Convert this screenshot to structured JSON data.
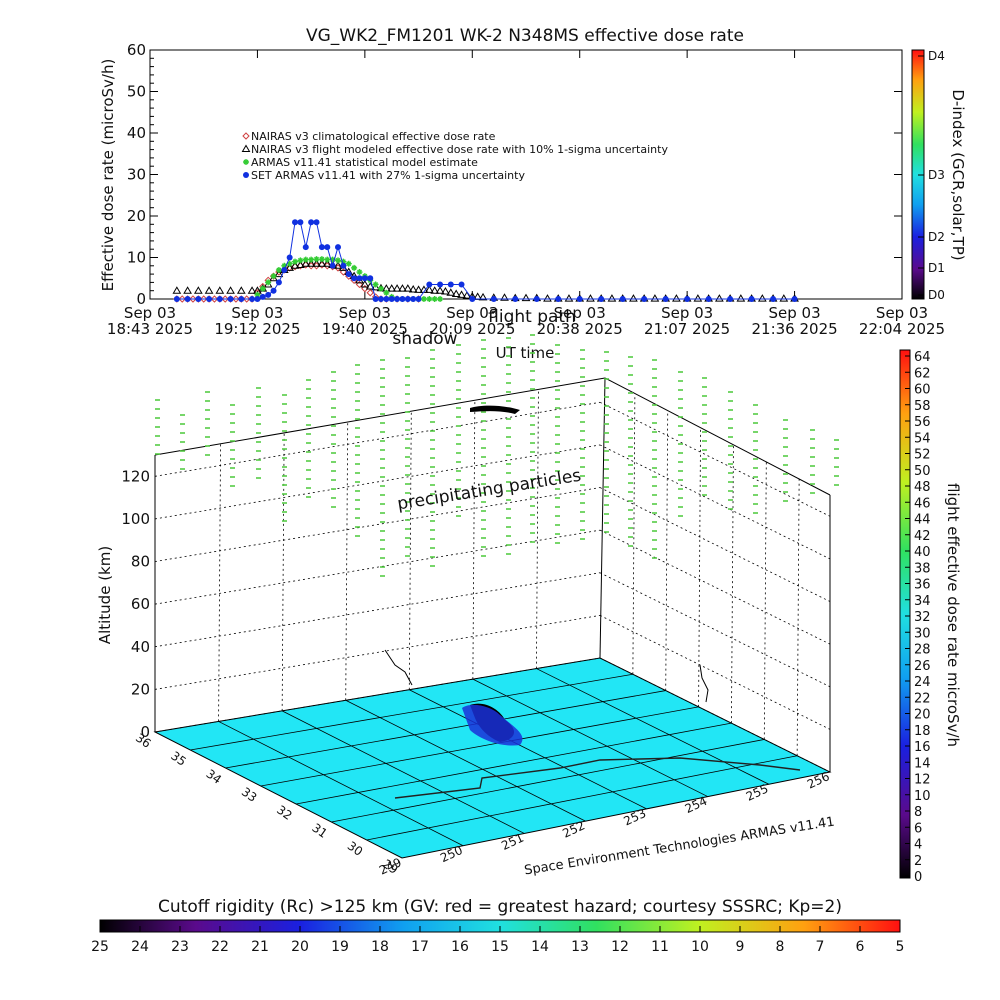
{
  "header": {
    "title": "VG_WK2_FM1201    WK-2 N348MS effective dose rate"
  },
  "chart_data": [
    {
      "type": "scatter",
      "title": "VG_WK2_FM1201    WK-2 N348MS effective dose rate",
      "ylabel": "Effective dose rate (microSv/h)",
      "xlabel": "UT time",
      "ylim": [
        0,
        60
      ],
      "y_ticks": [
        "0",
        "10",
        "20",
        "30",
        "40",
        "50",
        "60"
      ],
      "x_ticks": [
        {
          "line1": "Sep 03",
          "line2": "18:43 2025"
        },
        {
          "line1": "Sep 03",
          "line2": "19:12 2025"
        },
        {
          "line1": "Sep 03",
          "line2": "19:40 2025"
        },
        {
          "line1": "Sep 03",
          "line2": "20:09 2025"
        },
        {
          "line1": "Sep 03",
          "line2": "20:38 2025"
        },
        {
          "line1": "Sep 03",
          "line2": "21:07 2025"
        },
        {
          "line1": "Sep 03",
          "line2": "21:36 2025"
        },
        {
          "line1": "Sep 03",
          "line2": "22:04 2025"
        }
      ],
      "annotations": [
        "shadow",
        "flight path"
      ],
      "legend": [
        {
          "label": "NAIRAS v3 climatological effective dose rate",
          "color": "#d04040",
          "marker": "diamond"
        },
        {
          "label": "NAIRAS v3 flight modeled effective dose rate with 10% 1-sigma uncertainty",
          "color": "#000000",
          "marker": "triangle"
        },
        {
          "label": "ARMAS v11.41 statistical model estimate",
          "color": "#33cc33",
          "marker": "star"
        },
        {
          "label": "SET ARMAS v11.41 with 27% 1-sigma uncertainty",
          "color": "#1030e0",
          "marker": "circle"
        }
      ],
      "legend_position": "upper-left",
      "series": [
        {
          "name": "NAIRAS v3 climatological effective dose rate",
          "x": [
            0.25,
            0.3,
            0.35,
            0.4,
            0.45,
            0.5,
            0.55,
            0.6,
            0.65,
            0.7,
            0.75,
            0.8,
            0.85,
            0.9,
            0.95,
            1.0,
            1.05,
            1.1,
            1.15,
            1.2,
            1.25,
            1.3,
            1.35,
            1.4,
            1.45,
            1.5,
            1.55,
            1.6,
            1.65,
            1.7,
            1.75,
            1.8,
            1.85,
            1.9,
            1.95,
            2.0,
            2.05,
            2.1,
            2.15,
            2.2,
            2.3,
            2.4,
            2.5
          ],
          "y": [
            0,
            0,
            0,
            0,
            0,
            0,
            0,
            0,
            0,
            0,
            0,
            0,
            0,
            0,
            0,
            1.5,
            3,
            4.5,
            5.5,
            6.5,
            7,
            7.5,
            7.8,
            8,
            8.2,
            8,
            8,
            8.2,
            8,
            7.8,
            7.5,
            6.5,
            5.5,
            4.5,
            3.5,
            2.5,
            1.5,
            0.5,
            0,
            0,
            0,
            0,
            0
          ]
        },
        {
          "name": "NAIRAS v3 flight modeled effective dose rate with 10% 1-sigma uncertainty",
          "x": [
            0.25,
            0.35,
            0.45,
            0.55,
            0.65,
            0.75,
            0.85,
            0.95,
            1.0,
            1.05,
            1.1,
            1.15,
            1.2,
            1.25,
            1.3,
            1.35,
            1.4,
            1.45,
            1.5,
            1.55,
            1.6,
            1.65,
            1.7,
            1.75,
            1.8,
            1.85,
            1.9,
            1.95,
            2.0,
            2.05,
            2.1,
            2.15,
            2.2,
            2.25,
            2.3,
            2.35,
            2.4,
            2.45,
            2.5,
            2.55,
            2.6,
            2.65,
            2.7,
            2.75,
            2.8,
            2.85,
            2.9,
            2.95,
            3.0,
            3.05,
            3.1,
            3.2,
            3.3,
            3.4,
            3.5,
            3.6,
            3.7,
            3.8,
            3.9,
            4.0,
            4.1,
            4.2,
            4.3,
            4.4,
            4.5,
            4.6,
            4.7,
            4.8,
            4.9,
            5.0,
            5.1,
            5.2,
            5.3,
            5.4,
            5.5,
            5.6,
            5.7,
            5.8,
            5.9,
            6.0
          ],
          "y": [
            2,
            2,
            2,
            2,
            2,
            2,
            2,
            2,
            2,
            2.5,
            3.5,
            5,
            6,
            7,
            7.5,
            8,
            8.2,
            8.5,
            8.5,
            8.5,
            8.5,
            8.5,
            8.2,
            8,
            7.5,
            6.5,
            5.5,
            4.5,
            3.5,
            3,
            2.8,
            2.6,
            2.5,
            2.5,
            2.5,
            2.5,
            2.5,
            2.3,
            2.2,
            2.2,
            2.2,
            2,
            2,
            1.8,
            1.5,
            1.2,
            1,
            0.8,
            0.6,
            0.5,
            0.4,
            0.3,
            0.3,
            0.2,
            0.2,
            0.2,
            0.1,
            0.1,
            0.1,
            0.1,
            0.1,
            0.1,
            0.1,
            0.1,
            0.1,
            0.1,
            0.1,
            0.1,
            0.1,
            0.1,
            0.1,
            0.1,
            0.1,
            0.1,
            0.1,
            0.1,
            0.1,
            0.1,
            0.1,
            0.1
          ]
        },
        {
          "name": "ARMAS v11.41 statistical model estimate",
          "x": [
            1.0,
            1.05,
            1.1,
            1.15,
            1.2,
            1.25,
            1.3,
            1.35,
            1.4,
            1.45,
            1.5,
            1.55,
            1.6,
            1.65,
            1.7,
            1.75,
            1.8,
            1.85,
            1.9,
            1.95,
            2.0,
            2.05,
            2.1,
            2.15,
            2.2,
            2.25,
            2.3,
            2.35,
            2.4,
            2.45,
            2.5,
            2.55,
            2.6,
            2.65,
            2.7
          ],
          "y": [
            1,
            2.5,
            4,
            5.5,
            7,
            8,
            8.5,
            9,
            9.3,
            9.5,
            9.5,
            9.6,
            9.6,
            9.5,
            9.5,
            9.3,
            9,
            8.5,
            7.5,
            6.5,
            5.5,
            4.5,
            3.5,
            2.5,
            1.5,
            0.5,
            0,
            0,
            0,
            0,
            0,
            0,
            0,
            0,
            0
          ]
        },
        {
          "name": "SET ARMAS v11.41 with 27% 1-sigma uncertainty",
          "x": [
            0.25,
            0.35,
            0.45,
            0.55,
            0.65,
            0.75,
            0.85,
            0.95,
            1.0,
            1.05,
            1.1,
            1.15,
            1.2,
            1.25,
            1.3,
            1.35,
            1.4,
            1.45,
            1.5,
            1.55,
            1.6,
            1.65,
            1.7,
            1.75,
            1.8,
            1.85,
            1.9,
            1.95,
            2.0,
            2.05,
            2.1,
            2.15,
            2.2,
            2.25,
            2.3,
            2.35,
            2.4,
            2.45,
            2.5,
            2.6,
            2.7,
            2.8,
            2.9,
            3.0,
            3.2,
            3.4,
            3.6,
            3.8,
            4.0,
            4.2,
            4.4,
            4.6,
            4.8,
            5.0,
            5.2,
            5.4,
            5.6,
            5.8,
            6.0
          ],
          "y": [
            0,
            0,
            0,
            0,
            0,
            0,
            0,
            0,
            0,
            0.5,
            1,
            2,
            4,
            7,
            10,
            18.5,
            18.5,
            12.5,
            18.5,
            18.5,
            12.5,
            12.5,
            8,
            12.5,
            8,
            6,
            5,
            5,
            5,
            5,
            0,
            0,
            0,
            0,
            0,
            0,
            0,
            0,
            0,
            3.5,
            3.5,
            3.5,
            3.5,
            0,
            0,
            0,
            0,
            0,
            0,
            0,
            0,
            0,
            0,
            0,
            0,
            0,
            0,
            0,
            0
          ]
        }
      ]
    },
    {
      "type": "scatter",
      "zlabel": "Altitude (km)",
      "z_ticks": [
        "0",
        "20",
        "40",
        "60",
        "80",
        "100",
        "120"
      ],
      "lon_ticks": [
        "249",
        "250",
        "251",
        "252",
        "253",
        "254",
        "255",
        "256"
      ],
      "lat_ticks": [
        "29",
        "30",
        "31",
        "32",
        "33",
        "34",
        "35",
        "36"
      ],
      "annotations": [
        "precipitating particles"
      ],
      "credit": "Space Environment Technologies ARMAS v11.41"
    }
  ],
  "d_index": {
    "label": "D-index (GCR,solar,TP)",
    "ticks": [
      "D0",
      "D1",
      "D2",
      "D3",
      "D4"
    ]
  },
  "dose_colorbar": {
    "label": "flight effective dose rate microSv/h",
    "ticks": [
      "0",
      "2",
      "4",
      "6",
      "8",
      "10",
      "12",
      "14",
      "16",
      "18",
      "20",
      "22",
      "24",
      "26",
      "28",
      "30",
      "32",
      "34",
      "36",
      "38",
      "40",
      "42",
      "44",
      "46",
      "48",
      "50",
      "52",
      "54",
      "56",
      "58",
      "60",
      "62",
      "64"
    ]
  },
  "rigidity_colorbar": {
    "label": "Cutoff rigidity (Rc) >125 km (GV: red = greatest hazard; courtesy SSSRC; Kp=2)",
    "ticks": [
      "25",
      "24",
      "23",
      "22",
      "21",
      "20",
      "19",
      "18",
      "17",
      "16",
      "15",
      "14",
      "13",
      "12",
      "11",
      "10",
      "9",
      "8",
      "7",
      "6",
      "5"
    ]
  },
  "colors": {
    "floor": "#22e6f5",
    "particles": "#55cc44",
    "track": "#000000",
    "dose_blue": "#1a30d8"
  }
}
